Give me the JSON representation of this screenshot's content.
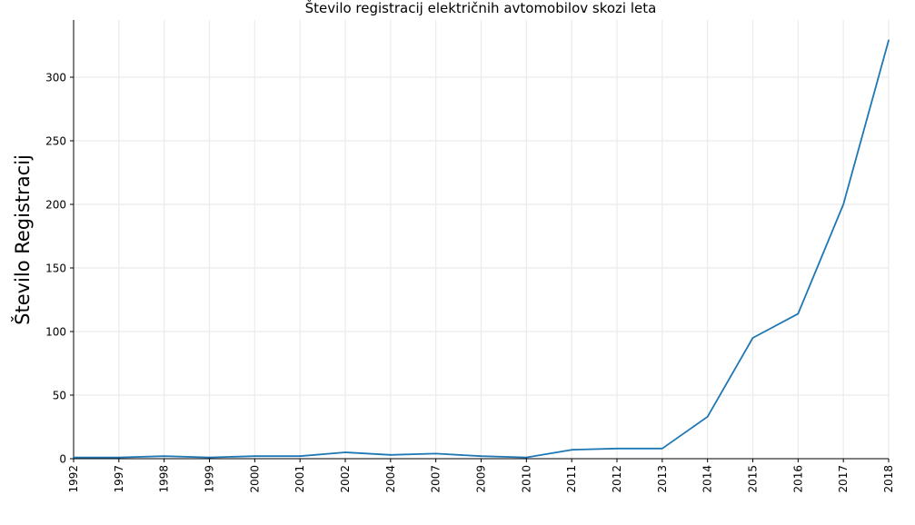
{
  "chart_data": {
    "type": "line",
    "title": "Število registracij električnih avtomobilov skozi leta",
    "xlabel": "",
    "ylabel": "Število Registracij",
    "categories": [
      "1992",
      "1997",
      "1998",
      "1999",
      "2000",
      "2001",
      "2002",
      "2004",
      "2007",
      "2009",
      "2010",
      "2011",
      "2012",
      "2013",
      "2014",
      "2015",
      "2016",
      "2017",
      "2018"
    ],
    "series": [
      {
        "values": [
          1,
          1,
          2,
          1,
          2,
          2,
          5,
          3,
          4,
          2,
          1,
          7,
          8,
          8,
          33,
          95,
          114,
          200,
          329
        ]
      }
    ],
    "yticks": [
      0,
      50,
      100,
      150,
      200,
      250,
      300
    ],
    "ylim": [
      0,
      345
    ],
    "grid": true,
    "color": "#1f77b4"
  }
}
